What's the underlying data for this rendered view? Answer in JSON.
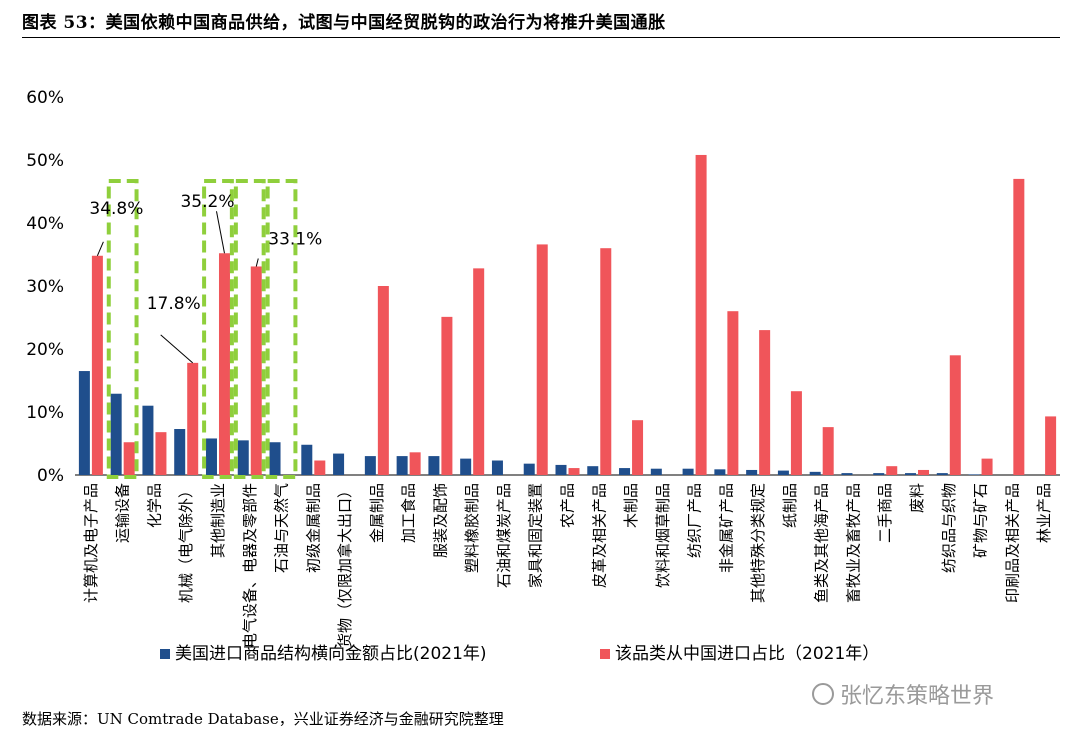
{
  "title": "图表 53：美国依赖中国商品供给，试图与中国经贸脱钩的政治行为将推升美国通胀",
  "source": "数据来源：UN Comtrade Database，兴业证券经济与金融研究院整理",
  "watermark": "张忆东策略世界",
  "colors": {
    "series1": "#1f4e8c",
    "series2": "#f0555a",
    "highlight": "#8fcf3c"
  },
  "chart_data": {
    "type": "bar",
    "ylim": [
      0,
      60
    ],
    "yticks": [
      "0%",
      "10%",
      "20%",
      "30%",
      "40%",
      "50%",
      "60%"
    ],
    "categories": [
      "计算机及电子产品",
      "运输设备",
      "化学品",
      "机械（电气除外）",
      "其他制造业",
      "电气设备、电器及零部件",
      "石油与天然气",
      "初级金属制品",
      "货物（仅限加拿大出口）",
      "金属制品",
      "加工食品",
      "服装及配饰",
      "塑料橡胶制品",
      "石油和煤炭产品",
      "家具和固定装置",
      "农产品",
      "皮革及相关产品",
      "木制品",
      "饮料和烟草制品",
      "纺织厂产品",
      "非金属矿产品",
      "其他特殊分类规定",
      "纸制品",
      "鱼类及其他海产品",
      "畜牧业及畜牧产品",
      "二手商品",
      "废料",
      "纺织品与织物",
      "矿物与矿石",
      "印刷品及相关产品",
      "林业产品"
    ],
    "series": [
      {
        "name": "美国进口商品结构横向金额占比(2021年)",
        "values": [
          16.5,
          12.9,
          11.0,
          7.3,
          5.8,
          5.5,
          5.2,
          4.8,
          3.4,
          3.0,
          3.0,
          3.0,
          2.6,
          2.3,
          1.8,
          1.6,
          1.4,
          1.1,
          1.0,
          1.0,
          0.9,
          0.8,
          0.7,
          0.5,
          0.3,
          0.3,
          0.3,
          0.3,
          0.1,
          0.0,
          0.0
        ]
      },
      {
        "name": "该品类从中国进口占比（2021年）",
        "values": [
          34.8,
          5.2,
          6.8,
          17.8,
          35.2,
          33.1,
          0.0,
          2.3,
          0.0,
          30.0,
          3.6,
          25.1,
          32.8,
          0.0,
          36.6,
          1.1,
          36.0,
          8.7,
          0.0,
          50.8,
          26.0,
          23.0,
          13.3,
          7.6,
          0.0,
          1.4,
          0.8,
          19.0,
          2.6,
          47.0,
          9.3
        ]
      }
    ],
    "annotations": [
      {
        "text": "34.8%",
        "category": "计算机及电子产品"
      },
      {
        "text": "17.8%",
        "category": "机械（电气除外）"
      },
      {
        "text": "35.2%",
        "category": "其他制造业"
      },
      {
        "text": "33.1%",
        "category": "电气设备、电器及零部件"
      }
    ],
    "highlighted_categories": [
      "运输设备",
      "其他制造业",
      "电气设备、电器及零部件",
      "石油与天然气"
    ],
    "legend_position": "bottom"
  }
}
